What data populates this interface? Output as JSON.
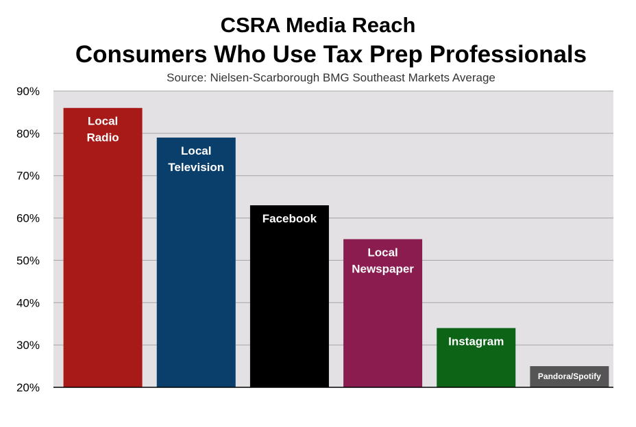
{
  "title": "CSRA Media Reach",
  "subtitle": "Consumers Who Use Tax Prep Professionals",
  "source": "Source: Nielsen-Scarborough BMG Southeast Markets Average",
  "chart_data": {
    "type": "bar",
    "title": "CSRA Media Reach",
    "subtitle": "Consumers Who Use Tax Prep Professionals",
    "categories": [
      "Local Radio",
      "Local Television",
      "Facebook",
      "Local Newspaper",
      "Instagram",
      "Pandora/Spotify"
    ],
    "label_lines": [
      [
        "Local",
        "Radio"
      ],
      [
        "Local",
        "Television"
      ],
      [
        "Facebook"
      ],
      [
        "Local",
        "Newspaper"
      ],
      [
        "Instagram"
      ],
      [
        "Pandora/Spotify"
      ]
    ],
    "values": [
      86,
      79,
      63,
      55,
      34,
      25
    ],
    "colors": [
      "#A81A17",
      "#0B3F6B",
      "#000000",
      "#8B1C4F",
      "#0D6416",
      "#555555"
    ],
    "ylim": [
      20,
      90
    ],
    "yticks": [
      "20%",
      "30%",
      "40%",
      "50%",
      "60%",
      "70%",
      "80%",
      "90%"
    ],
    "grid": true,
    "plot_background": "#E3E1E4",
    "xlabel": "",
    "ylabel": ""
  }
}
